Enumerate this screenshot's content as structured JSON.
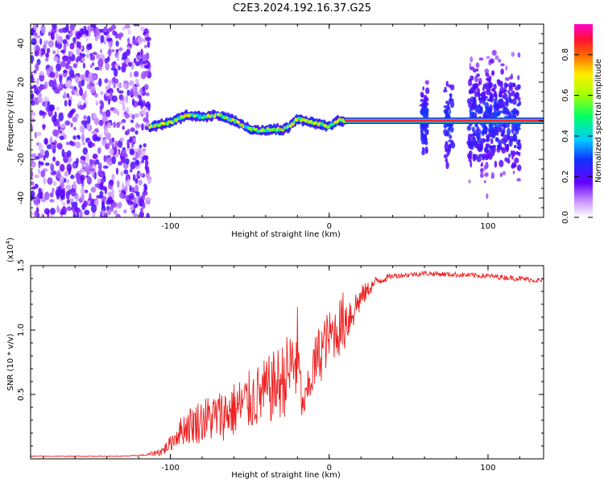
{
  "title": "C2E3.2024.192.16.37.G25",
  "colorbar": {
    "label": "Normalized spectral amplitude",
    "ticks": [
      "0.0",
      "0.2",
      "0.4",
      "0.6",
      "0.8"
    ],
    "tick_values": [
      0.0,
      0.2,
      0.4,
      0.6,
      0.8
    ],
    "range": [
      0.0,
      0.95
    ]
  },
  "chart_data": [
    {
      "type": "heatmap",
      "xlabel": "Height of straight line (km)",
      "ylabel": "Frequency (Hz)",
      "xlim": [
        -188,
        135
      ],
      "ylim": [
        -50,
        50
      ],
      "x_ticks": [
        -100,
        0,
        100
      ],
      "x_tick_labels": [
        "-100",
        "0",
        "100"
      ],
      "y_ticks": [
        -40,
        -20,
        0,
        20,
        40
      ],
      "y_tick_labels": [
        "-40",
        "-20",
        "0",
        "20",
        "40"
      ],
      "colormap": "rainbow (purple-blue-green-yellow-red-magenta)",
      "regions": [
        {
          "x": [
            -188,
            -113
          ],
          "y": [
            -50,
            50
          ],
          "description": "broadband noise, low amplitude"
        },
        {
          "x": [
            -113,
            10
          ],
          "y": [
            -10,
            8
          ],
          "description": "wandering narrowband signal near 0 Hz"
        },
        {
          "x": [
            10,
            135
          ],
          "y": [
            0,
            0
          ],
          "amplitude": 0.9,
          "description": "steady carrier at 0 Hz"
        },
        {
          "x": [
            58,
            62
          ],
          "y": [
            -30,
            30
          ],
          "description": "spectral spike"
        },
        {
          "x": [
            73,
            78
          ],
          "y": [
            -25,
            30
          ],
          "description": "spectral spike"
        },
        {
          "x": [
            88,
            120
          ],
          "y": [
            -45,
            40
          ],
          "description": "scattered noise bursts"
        }
      ],
      "signal_track": {
        "x": [
          -113,
          -100,
          -90,
          -80,
          -70,
          -60,
          -55,
          -50,
          -45,
          -40,
          -35,
          -30,
          -25,
          -20,
          -15,
          -10,
          -5,
          0,
          5,
          10
        ],
        "y": [
          -3,
          -1,
          3,
          2,
          3,
          0,
          -2,
          -4,
          -5,
          -5,
          -4,
          -5,
          -3,
          1,
          0,
          -1,
          -2,
          -3,
          0,
          0
        ]
      },
      "grid": false
    },
    {
      "type": "line",
      "xlabel": "Height of straight line (km)",
      "ylabel": "SNR (10 * v/v)",
      "y_multiplier": "(x10",
      "y_multiplier_exp": "4",
      "y_multiplier_close": ")",
      "xlim": [
        -188,
        135
      ],
      "ylim": [
        0,
        1.5
      ],
      "x_ticks": [
        -100,
        0,
        100
      ],
      "x_tick_labels": [
        "-100",
        "0",
        "100"
      ],
      "y_ticks": [
        0.5,
        1.0,
        1.5
      ],
      "y_tick_labels": [
        "0.5",
        "1.0",
        "1.5"
      ],
      "series": [
        {
          "color": "#ee2020",
          "x": [
            -188,
            -170,
            -150,
            -130,
            -115,
            -105,
            -100,
            -95,
            -90,
            -80,
            -70,
            -60,
            -50,
            -40,
            -30,
            -25,
            -20,
            -17,
            -15,
            -10,
            -5,
            0,
            5,
            10,
            15,
            20,
            25,
            30,
            40,
            60,
            80,
            100,
            120,
            135
          ],
          "y": [
            0.02,
            0.02,
            0.02,
            0.02,
            0.03,
            0.06,
            0.12,
            0.2,
            0.25,
            0.3,
            0.33,
            0.38,
            0.45,
            0.52,
            0.6,
            0.68,
            0.8,
            0.4,
            0.45,
            0.7,
            0.85,
            0.95,
            1.0,
            1.08,
            1.15,
            1.25,
            1.32,
            1.38,
            1.42,
            1.44,
            1.43,
            1.42,
            1.4,
            1.38
          ],
          "noise_amplitude": [
            0.003,
            0.003,
            0.003,
            0.003,
            0.005,
            0.04,
            0.06,
            0.1,
            0.14,
            0.18,
            0.2,
            0.22,
            0.24,
            0.26,
            0.3,
            0.32,
            0.4,
            0.1,
            0.12,
            0.22,
            0.25,
            0.2,
            0.22,
            0.25,
            0.15,
            0.1,
            0.06,
            0.04,
            0.02,
            0.02,
            0.02,
            0.02,
            0.02,
            0.02
          ]
        }
      ],
      "grid": false
    }
  ]
}
